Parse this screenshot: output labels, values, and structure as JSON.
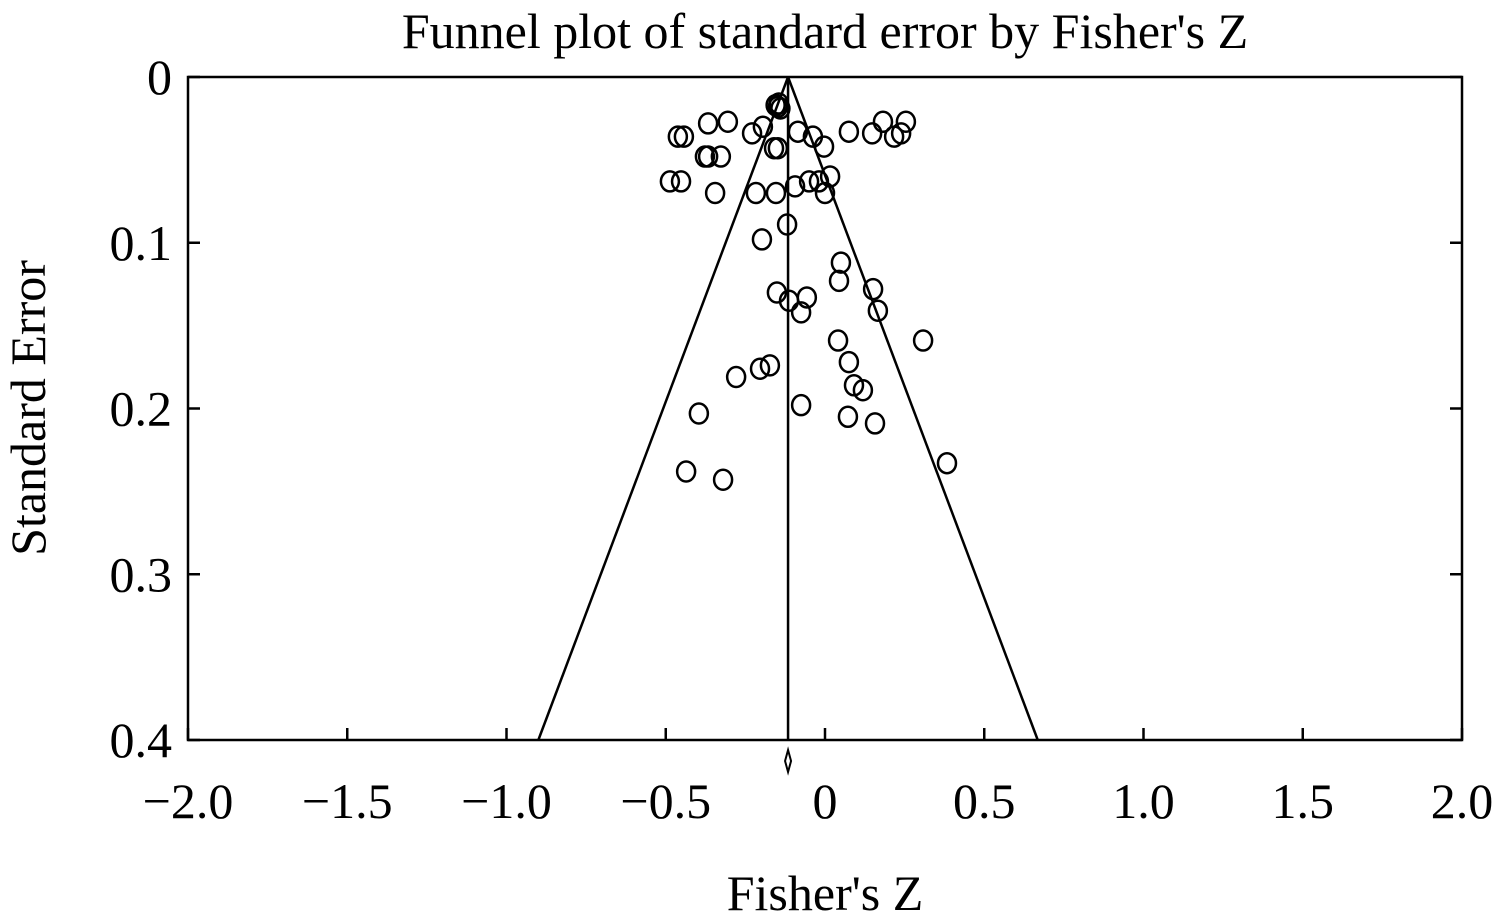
{
  "chart_data": {
    "type": "scatter",
    "title": "Funnel plot of standard error by Fisher's Z",
    "xlabel": "Fisher's Z",
    "ylabel": "Standard Error",
    "xlim": [
      -2.0,
      2.0
    ],
    "ylim": [
      0,
      0.4
    ],
    "y_inverted": true,
    "grid": false,
    "xticks": [
      -2.0,
      -1.5,
      -1.0,
      -0.5,
      0,
      0.5,
      1.0,
      1.5,
      2.0
    ],
    "xtick_labels": [
      "−2.0",
      "−1.5",
      "−1.0",
      "−0.5",
      "0",
      "0.5",
      "1.0",
      "1.5",
      "2.0"
    ],
    "yticks": [
      0,
      0.1,
      0.2,
      0.3,
      0.4
    ],
    "ytick_labels": [
      "0",
      "0.1",
      "0.2",
      "0.3",
      "0.4"
    ],
    "pooled_estimate": -0.116,
    "funnel_z": 1.96,
    "marker": "open-circle",
    "points": [
      [
        -0.155,
        0.017
      ],
      [
        -0.148,
        0.018
      ],
      [
        -0.14,
        0.019
      ],
      [
        -0.145,
        0.016
      ],
      [
        -0.367,
        0.028
      ],
      [
        -0.305,
        0.027
      ],
      [
        -0.195,
        0.03
      ],
      [
        -0.229,
        0.034
      ],
      [
        -0.462,
        0.036
      ],
      [
        -0.443,
        0.036
      ],
      [
        -0.377,
        0.048
      ],
      [
        -0.367,
        0.048
      ],
      [
        -0.327,
        0.048
      ],
      [
        -0.16,
        0.043
      ],
      [
        -0.148,
        0.043
      ],
      [
        -0.085,
        0.033
      ],
      [
        -0.038,
        0.036
      ],
      [
        -0.003,
        0.042
      ],
      [
        0.075,
        0.033
      ],
      [
        0.148,
        0.034
      ],
      [
        0.182,
        0.027
      ],
      [
        0.254,
        0.027
      ],
      [
        0.217,
        0.036
      ],
      [
        0.239,
        0.034
      ],
      [
        -0.487,
        0.063
      ],
      [
        -0.452,
        0.063
      ],
      [
        -0.345,
        0.07
      ],
      [
        -0.217,
        0.07
      ],
      [
        -0.154,
        0.07
      ],
      [
        -0.094,
        0.066
      ],
      [
        -0.05,
        0.063
      ],
      [
        -0.019,
        0.063
      ],
      [
        0.016,
        0.06
      ],
      [
        0,
        0.07
      ],
      [
        -0.119,
        0.089
      ],
      [
        -0.198,
        0.098
      ],
      [
        0.05,
        0.112
      ],
      [
        0.044,
        0.123
      ],
      [
        0.151,
        0.128
      ],
      [
        0.166,
        0.141
      ],
      [
        -0.151,
        0.13
      ],
      [
        -0.113,
        0.135
      ],
      [
        -0.057,
        0.133
      ],
      [
        -0.075,
        0.142
      ],
      [
        0.308,
        0.159
      ],
      [
        0.041,
        0.159
      ],
      [
        0.075,
        0.172
      ],
      [
        -0.173,
        0.174
      ],
      [
        -0.204,
        0.176
      ],
      [
        -0.279,
        0.181
      ],
      [
        0.091,
        0.186
      ],
      [
        0.119,
        0.189
      ],
      [
        -0.396,
        0.203
      ],
      [
        -0.075,
        0.198
      ],
      [
        0.072,
        0.205
      ],
      [
        0.157,
        0.209
      ],
      [
        0.383,
        0.233
      ],
      [
        -0.436,
        0.238
      ],
      [
        -0.32,
        0.243
      ]
    ]
  }
}
